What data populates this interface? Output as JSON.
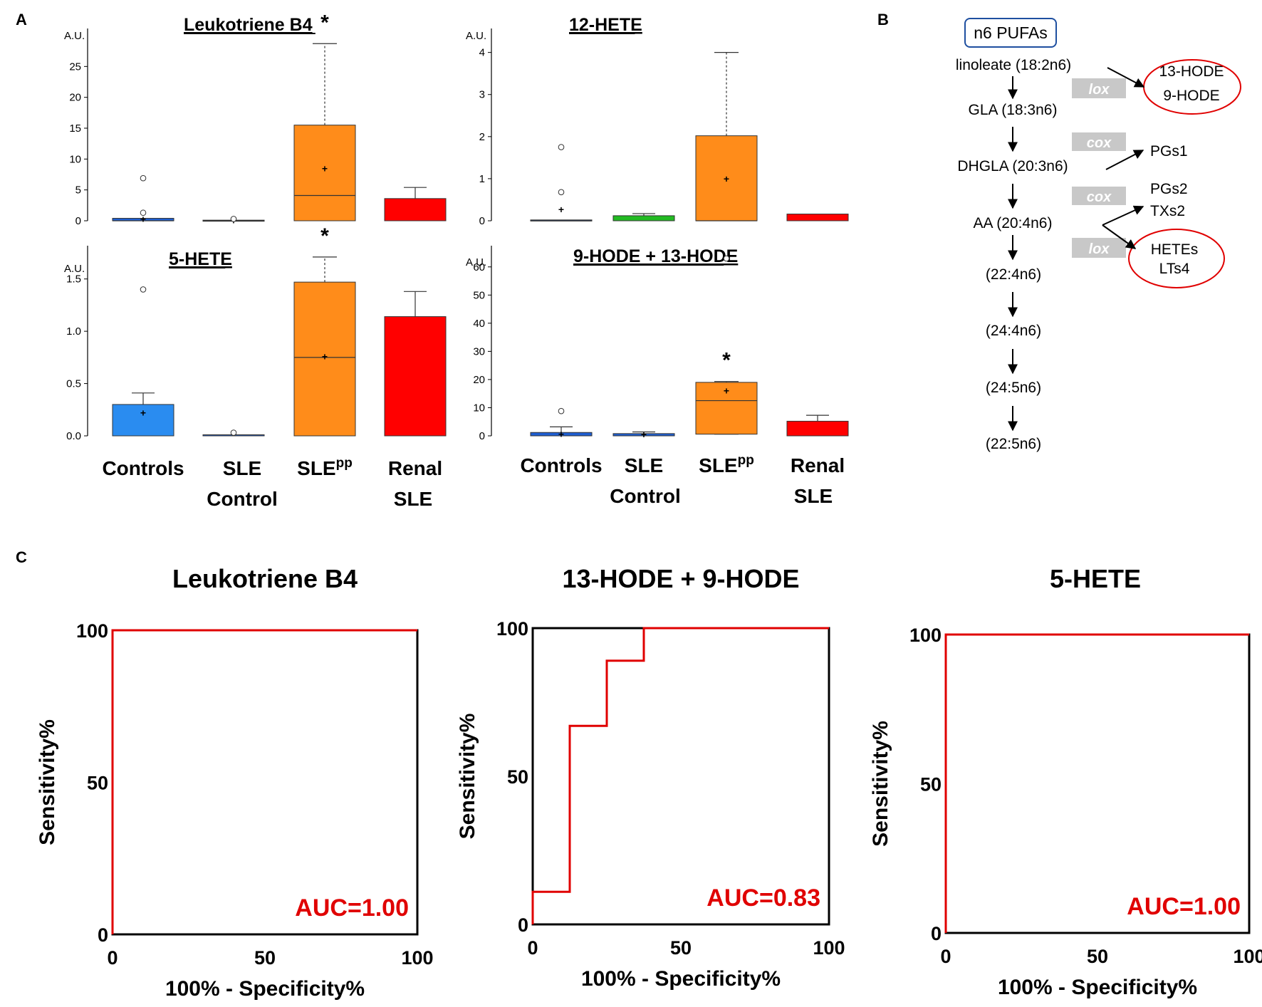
{
  "panel_labels": {
    "a": "A",
    "b": "B",
    "c": "C"
  },
  "group_labels": {
    "g1": [
      "Controls"
    ],
    "g2": [
      "SLE",
      "Control"
    ],
    "g3_main": "SLE",
    "g3_sup": "pp",
    "g4": [
      "Renal",
      "SLE"
    ]
  },
  "chart_data": [
    {
      "type": "box",
      "panel": "A",
      "title": "Leukotriene B4",
      "ylabel": "A.U.",
      "ylim": [
        0,
        30
      ],
      "yticks": [
        0,
        5,
        10,
        15,
        20,
        25
      ],
      "categories": [
        "Controls",
        "SLE Control",
        "SLEpp",
        "Renal SLE"
      ],
      "colors": [
        "#1f5fd1",
        "#1f5fd1",
        "#ff8c1a",
        "#ff0000"
      ],
      "boxes": [
        {
          "q1": 0,
          "median": 0,
          "q3": 0.4,
          "mean": 0.3,
          "outliers": [
            6.9,
            1.3
          ]
        },
        {
          "q1": 0,
          "median": 0,
          "q3": 0.1,
          "mean": 0.05,
          "outliers": [
            0.3
          ]
        },
        {
          "q1": 0,
          "median": 4.1,
          "q3": 15.5,
          "mean": 8.5,
          "whisker_high": 28.7,
          "outliers": []
        },
        {
          "bar": 3.6,
          "error": 5.4
        }
      ],
      "significance": [
        {
          "category": "SLEpp",
          "label": "*"
        }
      ]
    },
    {
      "type": "box",
      "panel": "A",
      "title": "12-HETE",
      "ylabel": "A.U.",
      "ylim": [
        0,
        4.4
      ],
      "yticks": [
        0,
        1,
        2,
        3,
        4
      ],
      "categories": [
        "Controls",
        "SLE Control",
        "SLEpp",
        "Renal SLE"
      ],
      "colors": [
        "#1f5fd1",
        "#22bb22",
        "#ff8c1a",
        "#ff0000"
      ],
      "boxes": [
        {
          "q1": 0,
          "median": 0,
          "q3": 0.02,
          "mean": 0.27,
          "outliers": [
            1.75,
            0.68
          ]
        },
        {
          "bar": 0.12,
          "error": 0.17
        },
        {
          "q1": 0,
          "median": 0,
          "q3": 2.02,
          "mean": 1.0,
          "whisker_high": 4.0,
          "outliers": []
        },
        {
          "bar": 0.16
        }
      ],
      "significance": []
    },
    {
      "type": "box",
      "panel": "A",
      "title": "5-HETE",
      "ylabel": "A.U.",
      "ylim": [
        0,
        1.75
      ],
      "yticks": [
        0.0,
        0.5,
        1.0,
        1.5
      ],
      "ytick_labels": [
        "0.0",
        "0.5",
        "1.0",
        "1.5"
      ],
      "categories": [
        "Controls",
        "SLE Control",
        "SLEpp",
        "Renal SLE"
      ],
      "colors": [
        "#2a8cf0",
        "#1f5fd1",
        "#ff8c1a",
        "#ff0000"
      ],
      "boxes": [
        {
          "bar": 0.3,
          "error": 0.41,
          "mean": 0.22,
          "outliers": [
            1.4
          ]
        },
        {
          "bar": 0.005,
          "outliers": [
            0.03
          ]
        },
        {
          "q1": 0,
          "median": 0.75,
          "q3": 1.47,
          "mean": 0.76,
          "whisker_high": 1.71,
          "outliers": []
        },
        {
          "bar": 1.14,
          "error": 1.38
        }
      ],
      "significance": [
        {
          "category": "SLEpp",
          "label": "*"
        }
      ]
    },
    {
      "type": "box",
      "panel": "A",
      "title": "9-HODE + 13-HODE",
      "ylabel": "A.U.",
      "ylim": [
        0,
        65
      ],
      "yticks": [
        0,
        10,
        20,
        30,
        40,
        50,
        60
      ],
      "categories": [
        "Controls",
        "SLE Control",
        "SLEpp",
        "Renal SLE"
      ],
      "colors": [
        "#1f5fd1",
        "#1f5fd1",
        "#ff8c1a",
        "#ff0000"
      ],
      "boxes": [
        {
          "bar": 1.2,
          "error": 3.2,
          "mean": 0.6,
          "outliers": [
            8.8
          ]
        },
        {
          "bar": 0.8,
          "error": 1.4,
          "mean": 0.5,
          "outliers": []
        },
        {
          "q1": 0.6,
          "median": 12.5,
          "q3": 19.0,
          "mean": 16.0,
          "whisker_low": 0.6,
          "whisker_high": 19.3,
          "outliers": [
            63
          ]
        },
        {
          "bar": 5.2,
          "error": 7.3
        }
      ],
      "significance": [
        {
          "category": "SLEpp",
          "label": "*"
        }
      ]
    },
    {
      "type": "line",
      "panel": "C",
      "title": "Leukotriene B4",
      "xlabel": "100% - Specificity%",
      "ylabel": "Sensitivity%",
      "xlim": [
        0,
        100
      ],
      "ylim": [
        0,
        100
      ],
      "xticks": [
        0,
        50,
        100
      ],
      "yticks": [
        0,
        50,
        100
      ],
      "series": [
        {
          "x": [
            0,
            0,
            100
          ],
          "y": [
            0,
            100,
            100
          ]
        }
      ],
      "annotation": "AUC=1.00"
    },
    {
      "type": "line",
      "panel": "C",
      "title": "13-HODE + 9-HODE",
      "xlabel": "100% - Specificity%",
      "ylabel": "Sensitivity%",
      "xlim": [
        0,
        100
      ],
      "ylim": [
        0,
        100
      ],
      "xticks": [
        0,
        50,
        100
      ],
      "yticks": [
        0,
        50,
        100
      ],
      "series": [
        {
          "x": [
            0,
            0,
            12.5,
            12.5,
            25,
            25,
            37.5,
            37.5,
            100
          ],
          "y": [
            0,
            11,
            11,
            67,
            67,
            89,
            89,
            100,
            100
          ]
        }
      ],
      "annotation": "AUC=0.83"
    },
    {
      "type": "line",
      "panel": "C",
      "title": "5-HETE",
      "xlabel": "100% - Specificity%",
      "ylabel": "Sensitivity%",
      "xlim": [
        0,
        100
      ],
      "ylim": [
        0,
        100
      ],
      "xticks": [
        0,
        50,
        100
      ],
      "yticks": [
        0,
        50,
        100
      ],
      "series": [
        {
          "x": [
            0,
            0,
            100
          ],
          "y": [
            0,
            100,
            100
          ]
        }
      ],
      "annotation": "AUC=1.00"
    }
  ],
  "pathway": {
    "header": "n6 PUFAs",
    "steps": [
      "linoleate (18:2n6)",
      "GLA (18:3n6)",
      "DHGLA (20:3n6)",
      "AA (20:4n6)",
      "(22:4n6)",
      "(24:4n6)",
      "(24:5n6)",
      "(22:5n6)"
    ],
    "enzymes": [
      "lox",
      "cox",
      "cox",
      "lox"
    ],
    "products": [
      [
        "13-HODE",
        "9-HODE"
      ],
      [
        "PGs1"
      ],
      [
        "PGs2",
        "TXs2"
      ],
      [
        "HETEs",
        "LTs4"
      ]
    ],
    "highlight_color": "#e00000",
    "header_border_color": "#1e4fa0"
  }
}
